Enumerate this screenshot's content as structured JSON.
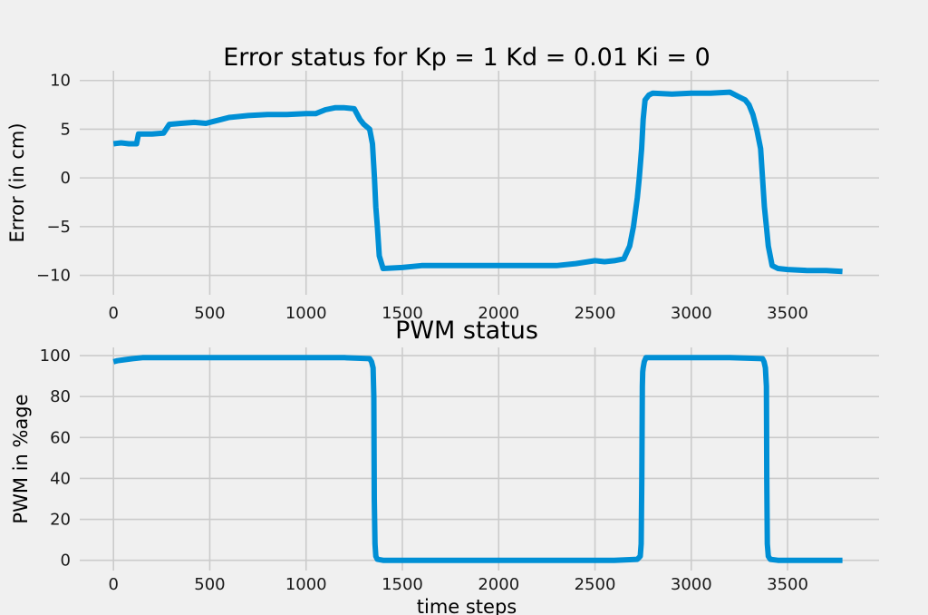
{
  "chart_data": [
    {
      "type": "line",
      "title": "Error status for Kp = 1 Kd = 0.01 Ki = 0",
      "xlabel": "",
      "ylabel": "Error (in cm)",
      "xlim": [
        -175,
        3975
      ],
      "ylim": [
        -12,
        11
      ],
      "xticks": [
        0,
        500,
        1000,
        1500,
        2000,
        2500,
        3000,
        3500
      ],
      "xtick_labels": [
        "0",
        "500",
        "1000",
        "1500",
        "2000",
        "2500",
        "3000",
        "3500"
      ],
      "yticks": [
        10,
        5,
        0,
        -5,
        -10
      ],
      "ytick_labels": [
        "10",
        "5",
        "0",
        "−5",
        "−10"
      ],
      "grid": true,
      "color": "#008fd5",
      "series": [
        {
          "x": [
            0,
            40,
            80,
            120,
            130,
            200,
            260,
            290,
            350,
            420,
            480,
            520,
            560,
            600,
            700,
            800,
            900,
            1000,
            1050,
            1100,
            1150,
            1200,
            1250,
            1280,
            1300,
            1330,
            1345,
            1355,
            1362,
            1370,
            1380,
            1400,
            1500,
            1600,
            1700,
            1800,
            1900,
            2000,
            2100,
            2200,
            2300,
            2400,
            2500,
            2550,
            2600,
            2650,
            2680,
            2700,
            2720,
            2730,
            2742,
            2750,
            2760,
            2780,
            2800,
            2900,
            3000,
            3100,
            3200,
            3250,
            3280,
            3300,
            3320,
            3340,
            3360,
            3370,
            3380,
            3390,
            3400,
            3420,
            3450,
            3500,
            3600,
            3700,
            3785
          ],
          "y": [
            3.5,
            3.6,
            3.5,
            3.5,
            4.5,
            4.5,
            4.6,
            5.5,
            5.6,
            5.7,
            5.6,
            5.8,
            6.0,
            6.2,
            6.4,
            6.5,
            6.5,
            6.6,
            6.6,
            7.0,
            7.2,
            7.2,
            7.1,
            6.0,
            5.5,
            5.0,
            3.5,
            0.0,
            -3.0,
            -5.0,
            -8.0,
            -9.3,
            -9.2,
            -9.0,
            -9.0,
            -9.0,
            -9.0,
            -9.0,
            -9.0,
            -9.0,
            -9.0,
            -8.8,
            -8.5,
            -8.6,
            -8.5,
            -8.3,
            -7.0,
            -5.0,
            -2.0,
            0.0,
            3.0,
            6.0,
            8.0,
            8.5,
            8.7,
            8.6,
            8.7,
            8.7,
            8.8,
            8.3,
            8.0,
            7.5,
            6.5,
            5.0,
            3.0,
            0.0,
            -3.0,
            -5.0,
            -7.0,
            -9.0,
            -9.3,
            -9.4,
            -9.5,
            -9.5,
            -9.6
          ]
        }
      ]
    },
    {
      "type": "line",
      "title": "PWM status",
      "xlabel": "time steps",
      "ylabel": "PWM in %age",
      "xlim": [
        -175,
        3975
      ],
      "ylim": [
        -5,
        104
      ],
      "xticks": [
        0,
        500,
        1000,
        1500,
        2000,
        2500,
        3000,
        3500
      ],
      "xtick_labels": [
        "0",
        "500",
        "1000",
        "1500",
        "2000",
        "2500",
        "3000",
        "3500"
      ],
      "yticks": [
        100,
        80,
        60,
        40,
        20,
        0
      ],
      "ytick_labels": [
        "100",
        "80",
        "60",
        "40",
        "20",
        "0"
      ],
      "grid": true,
      "color": "#008fd5",
      "series": [
        {
          "x": [
            0,
            20,
            60,
            100,
            150,
            300,
            600,
            900,
            1200,
            1330,
            1340,
            1348,
            1352,
            1354,
            1358,
            1362,
            1370,
            1400,
            1800,
            2200,
            2600,
            2720,
            2735,
            2740,
            2743,
            2746,
            2748,
            2750,
            2756,
            2765,
            2780,
            3000,
            3200,
            3370,
            3378,
            3385,
            3390,
            3392,
            3395,
            3400,
            3410,
            3450,
            3600,
            3785
          ],
          "y": [
            97,
            97.5,
            98,
            98.5,
            99,
            99,
            99,
            99,
            99,
            98.5,
            97,
            94,
            80,
            30,
            8,
            2,
            0.5,
            0,
            0,
            0,
            0,
            0.5,
            2,
            8,
            40,
            85,
            92,
            94,
            97,
            99,
            99,
            99,
            99,
            98.5,
            97,
            94,
            85,
            40,
            8,
            2,
            0.5,
            0,
            0,
            0
          ]
        }
      ]
    }
  ]
}
